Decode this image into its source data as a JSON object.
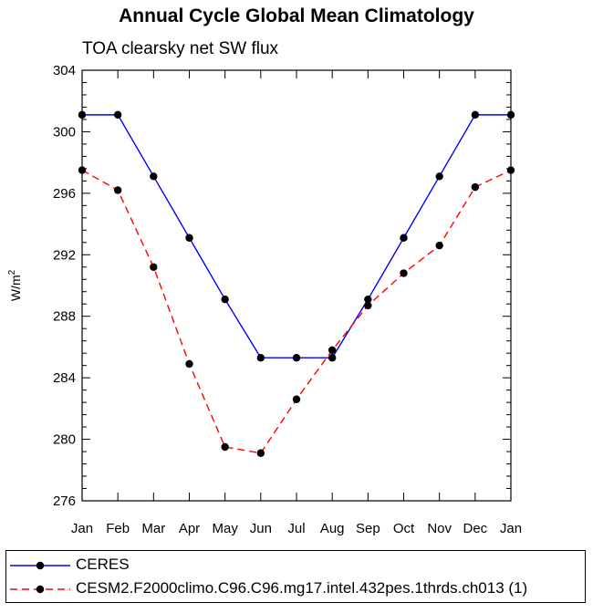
{
  "chart_data": {
    "type": "line",
    "title": "Annual Cycle Global Mean Climatology",
    "subtitle": "TOA clearsky net SW flux",
    "xlabel": "",
    "ylabel": "W/m",
    "ylabel_superscript": "2",
    "ylim": [
      276,
      304
    ],
    "yticks": [
      "276",
      "280",
      "284",
      "288",
      "292",
      "296",
      "300",
      "304"
    ],
    "yticks_values": [
      276,
      280,
      284,
      288,
      292,
      296,
      300,
      304
    ],
    "categories": [
      "Jan",
      "Feb",
      "Mar",
      "Apr",
      "May",
      "Jun",
      "Jul",
      "Aug",
      "Sep",
      "Oct",
      "Nov",
      "Dec",
      "Jan"
    ],
    "grid": false,
    "legend_position": "bottom",
    "series": [
      {
        "name": "CERES",
        "color": "#0000ff",
        "dash": "solid",
        "values": [
          301.1,
          301.1,
          297.1,
          293.1,
          289.1,
          285.3,
          285.3,
          285.3,
          289.1,
          293.1,
          297.1,
          301.1,
          301.1
        ]
      },
      {
        "name": "CESM2.F2000climo.C96.C96.mg17.intel.432pes.1thrds.ch013 (1)",
        "color": "#ff0000",
        "dash": "dashed",
        "values": [
          297.5,
          296.2,
          291.2,
          284.9,
          279.5,
          279.1,
          282.6,
          285.8,
          288.7,
          290.8,
          292.6,
          296.4,
          297.5
        ]
      }
    ]
  }
}
